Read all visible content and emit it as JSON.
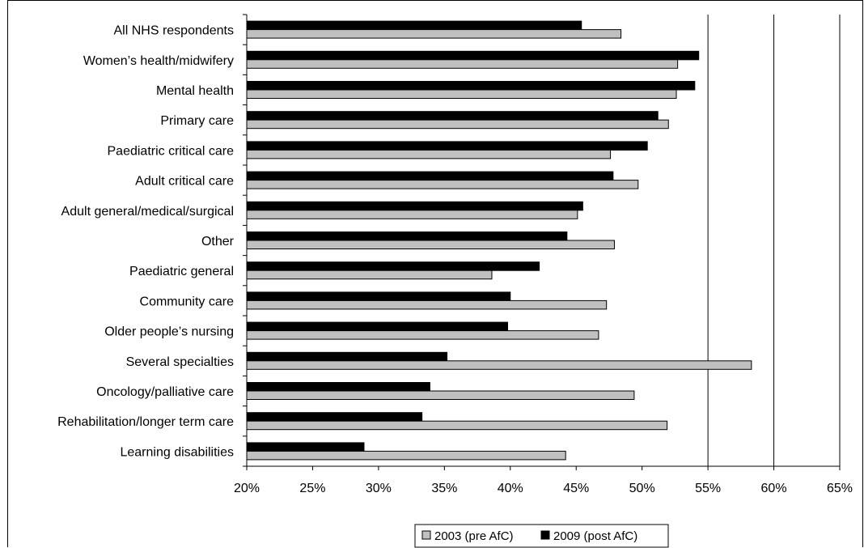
{
  "chart_data": {
    "type": "bar",
    "orientation": "horizontal",
    "categories": [
      "All NHS respondents",
      "Women’s health/midwifery",
      "Mental health",
      "Primary care",
      "Paediatric critical care",
      "Adult critical care",
      "Adult general/medical/surgical",
      "Other",
      "Paediatric general",
      "Community care",
      "Older people’s nursing",
      "Several specialties",
      "Oncology/palliative care",
      "Rehabilitation/longer term care",
      "Learning disabilities"
    ],
    "series": [
      {
        "name": "2003 (pre AfC)",
        "color": "#c0c0c0",
        "values": [
          48.4,
          52.7,
          52.6,
          52.0,
          47.6,
          49.7,
          45.1,
          47.9,
          38.6,
          47.3,
          46.7,
          58.3,
          49.4,
          51.9,
          44.2
        ]
      },
      {
        "name": "2009 (post AfC)",
        "color": "#000000",
        "values": [
          45.4,
          54.3,
          54.0,
          51.2,
          50.4,
          47.8,
          45.5,
          44.3,
          42.2,
          40.0,
          39.8,
          35.2,
          33.9,
          33.3,
          28.9
        ]
      }
    ],
    "xlim": [
      20,
      65
    ],
    "xticks": [
      "20%",
      "25%",
      "30%",
      "35%",
      "40%",
      "45%",
      "50%",
      "55%",
      "60%",
      "65%"
    ],
    "gridlines": [
      55,
      60,
      65
    ],
    "legend": {
      "position": "bottom",
      "entries": [
        "2003 (pre AfC)",
        "2009 (post AfC)"
      ]
    },
    "title": "",
    "xlabel": "",
    "ylabel": ""
  }
}
